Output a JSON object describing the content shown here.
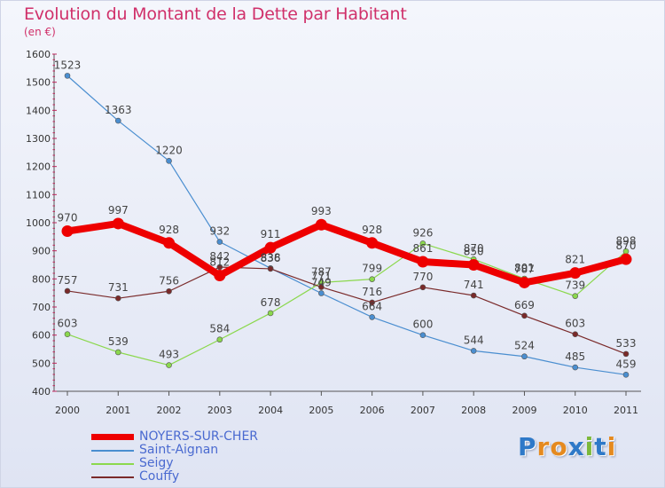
{
  "header": {
    "title": "Evolution du Montant de la Dette par Habitant",
    "subtitle": "(en €)"
  },
  "logo": {
    "text": "Proxiti",
    "letter_colors": [
      "#2e79c8",
      "#e58a1f",
      "#e58a1f",
      "#2e79c8",
      "#7cb83a",
      "#2e79c8",
      "#e58a1f"
    ]
  },
  "chart_data": {
    "type": "line",
    "title": "Evolution du Montant de la Dette par Habitant",
    "subtitle": "(en €)",
    "x": [
      "2000",
      "2001",
      "2002",
      "2003",
      "2004",
      "2005",
      "2006",
      "2007",
      "2008",
      "2009",
      "2010",
      "2011"
    ],
    "ylim": [
      400,
      1600
    ],
    "yticks": [
      400,
      500,
      600,
      700,
      800,
      900,
      1000,
      1100,
      1200,
      1300,
      1400,
      1500,
      1600
    ],
    "grid": false,
    "legend_position": "bottom-left",
    "series": [
      {
        "name": "NOYERS-SUR-CHER",
        "color": "#ee0000",
        "emphasis": true,
        "values": [
          970,
          997,
          928,
          812,
          911,
          993,
          928,
          861,
          850,
          787,
          821,
          870
        ],
        "labels": [
          "970",
          "997",
          "928",
          "812",
          "911",
          "993",
          "928",
          "861",
          "850",
          "787",
          "821",
          "870"
        ]
      },
      {
        "name": "Saint-Aignan",
        "color": "#4a8ed0",
        "emphasis": false,
        "values": [
          1523,
          1363,
          1220,
          932,
          838,
          749,
          664,
          600,
          544,
          524,
          485,
          459
        ],
        "labels": [
          "1523",
          "1363",
          "1220",
          "932",
          "838",
          "749",
          "664",
          "600",
          "544",
          "524",
          "485",
          "459"
        ]
      },
      {
        "name": "Seigy",
        "color": "#8bd84d",
        "emphasis": false,
        "values": [
          603,
          539,
          493,
          584,
          678,
          787,
          799,
          926,
          870,
          801,
          739,
          898
        ],
        "labels": [
          "603",
          "539",
          "493",
          "584",
          "678",
          "787",
          "799",
          "926",
          "870",
          "801",
          "739",
          "898"
        ]
      },
      {
        "name": "Couffy",
        "color": "#7a2a2a",
        "emphasis": false,
        "values": [
          757,
          731,
          756,
          842,
          836,
          771,
          716,
          770,
          741,
          669,
          603,
          533
        ],
        "labels": [
          "757",
          "731",
          "756",
          "842",
          "836",
          "771",
          "716",
          "770",
          "741",
          "669",
          "603",
          "533"
        ]
      }
    ]
  }
}
